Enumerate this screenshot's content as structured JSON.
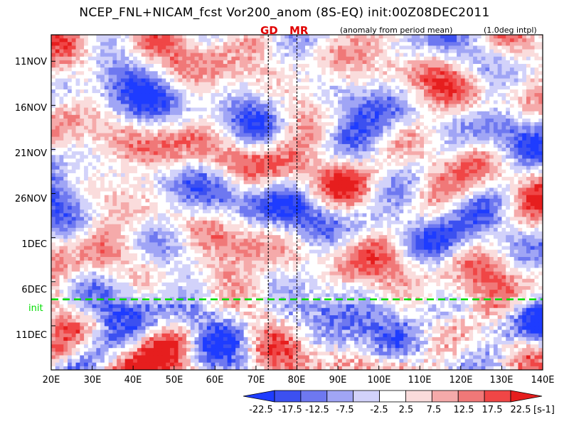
{
  "chart_data": {
    "type": "heatmap",
    "title": "NCEP_FNL+NICAM_fcst Vor200_anom (8S-EQ) init:00Z08DEC2011",
    "subtitle": "(anomaly from period mean)",
    "note_right": "(1.0deg intpl)",
    "x_axis": {
      "range_deg_east": [
        20,
        140
      ],
      "tick_values": [
        20,
        30,
        40,
        50,
        60,
        70,
        80,
        90,
        100,
        110,
        120,
        130,
        140
      ],
      "tick_labels": [
        "20E",
        "30E",
        "40E",
        "50E",
        "60E",
        "70E",
        "80E",
        "90E",
        "100E",
        "110E",
        "120E",
        "130E",
        "140E"
      ]
    },
    "y_axis": {
      "orientation": "time increases downward",
      "range_day_of_period": [
        0,
        38
      ],
      "tick_days": [
        3,
        8,
        13,
        18,
        23,
        28,
        33
      ],
      "tick_labels": [
        "11NOV",
        "16NOV",
        "21NOV",
        "26NOV",
        "1DEC",
        "6DEC",
        "11DEC"
      ]
    },
    "init_line": {
      "label": "init",
      "day_of_period": 30,
      "color": "#00dd00"
    },
    "markers": [
      {
        "label": "GD",
        "lon_deg_east": 73
      },
      {
        "label": "MR",
        "lon_deg_east": 80
      }
    ],
    "colorbar": {
      "levels": [
        -22.5,
        -17.5,
        -12.5,
        -7.5,
        -2.5,
        2.5,
        7.5,
        12.5,
        17.5,
        22.5
      ],
      "level_labels": [
        "-22.5",
        "-17.5",
        "-12.5",
        "-7.5",
        "-2.5",
        "2.5",
        "7.5",
        "12.5",
        "17.5",
        "22.5"
      ],
      "colors": [
        "#1e3cff",
        "#3c50f0",
        "#6e78f0",
        "#a0a5f5",
        "#d2d2fa",
        "#ffffff",
        "#fadcdc",
        "#f5aaaa",
        "#f07878",
        "#f04646",
        "#e61e1e"
      ],
      "units": "[s-1]"
    }
  }
}
